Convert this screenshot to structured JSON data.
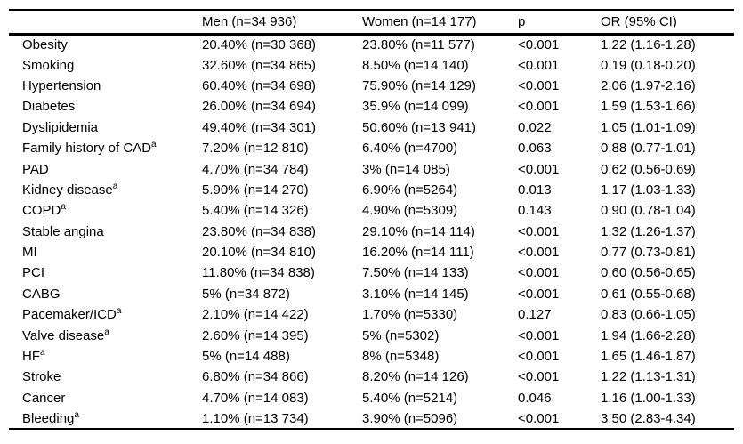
{
  "table": {
    "columns": [
      "",
      "Men (n=34 936)",
      "Women (n=14 177)",
      "p",
      "OR (95% CI)"
    ],
    "rows": [
      {
        "label": "Obesity",
        "sup": "",
        "men": "20.40% (n=30 368)",
        "women": "23.80% (n=11 577)",
        "p": "<0.001",
        "or": "1.22 (1.16-1.28)"
      },
      {
        "label": "Smoking",
        "sup": "",
        "men": "32.60% (n=34 865)",
        "women": "8.50% (n=14 140)",
        "p": "<0.001",
        "or": "0.19 (0.18-0.20)"
      },
      {
        "label": "Hypertension",
        "sup": "",
        "men": "60.40% (n=34 698)",
        "women": "75.90% (n=14 129)",
        "p": "<0.001",
        "or": "2.06 (1.97-2.16)"
      },
      {
        "label": "Diabetes",
        "sup": "",
        "men": "26.00% (n=34 694)",
        "women": "35.9% (n=14 099)",
        "p": "<0.001",
        "or": "1.59 (1.53-1.66)"
      },
      {
        "label": "Dyslipidemia",
        "sup": "",
        "men": "49.40% (n=34 301)",
        "women": "50.60% (n=13 941)",
        "p": "0.022",
        "or": "1.05 (1.01-1.09)"
      },
      {
        "label": "Family history of CAD",
        "sup": "a",
        "men": "7.20% (n=12 810)",
        "women": "6.40% (n=4700)",
        "p": "0.063",
        "or": "0.88 (0.77-1.01)"
      },
      {
        "label": "PAD",
        "sup": "",
        "men": "4.70% (n=34 784)",
        "women": "3% (n=14 085)",
        "p": "<0.001",
        "or": "0.62 (0.56-0.69)"
      },
      {
        "label": "Kidney disease",
        "sup": "a",
        "men": "5.90% (n=14 270)",
        "women": "6.90% (n=5264)",
        "p": "0.013",
        "or": "1.17 (1.03-1.33)"
      },
      {
        "label": "COPD",
        "sup": "a",
        "men": "5.40% (n=14 326)",
        "women": "4.90% (n=5309)",
        "p": "0.143",
        "or": "0.90 (0.78-1.04)"
      },
      {
        "label": "Stable angina",
        "sup": "",
        "men": "23.80% (n=34 838)",
        "women": "29.10% (n=14 114)",
        "p": "<0.001",
        "or": "1.32 (1.26-1.37)"
      },
      {
        "label": "MI",
        "sup": "",
        "men": "20.10% (n=34 810)",
        "women": "16.20% (n=14 111)",
        "p": "<0.001",
        "or": "0.77 (0.73-0.81)"
      },
      {
        "label": "PCI",
        "sup": "",
        "men": "11.80% (n=34 838)",
        "women": "7.50% (n=14 133)",
        "p": "<0.001",
        "or": "0.60 (0.56-0.65)"
      },
      {
        "label": "CABG",
        "sup": "",
        "men": "5% (n=34 872)",
        "women": "3.10% (n=14 145)",
        "p": "<0.001",
        "or": "0.61 (0.55-0.68)"
      },
      {
        "label": "Pacemaker/ICD",
        "sup": "a",
        "men": "2.10% (n=14 422)",
        "women": "1.70% (n=5330)",
        "p": "0.127",
        "or": "0.83 (0.66-1.05)"
      },
      {
        "label": "Valve disease",
        "sup": "a",
        "men": "2.60% (n=14 395)",
        "women": "5% (n=5302)",
        "p": "<0.001",
        "or": "1.94 (1.66-2.28)"
      },
      {
        "label": "HF",
        "sup": "a",
        "men": "5% (n=14 488)",
        "women": "8% (n=5348)",
        "p": "<0.001",
        "or": "1.65 (1.46-1.87)"
      },
      {
        "label": "Stroke",
        "sup": "",
        "men": "6.80% (n=34 866)",
        "women": "8.20% (n=14 126)",
        "p": "<0.001",
        "or": "1.22 (1.13-1.31)"
      },
      {
        "label": "Cancer",
        "sup": "",
        "men": "4.70% (n=14 083)",
        "women": "5.40% (n=5214)",
        "p": "0.046",
        "or": "1.16 (1.00-1.33)"
      },
      {
        "label": "Bleeding",
        "sup": "a",
        "men": "1.10% (n=13 734)",
        "women": "3.90% (n=5096)",
        "p": "<0.001",
        "or": "3.50 (2.83-4.34)"
      }
    ]
  },
  "colors": {
    "text": "#000000",
    "rule": "#000000",
    "background": "#ffffff"
  }
}
